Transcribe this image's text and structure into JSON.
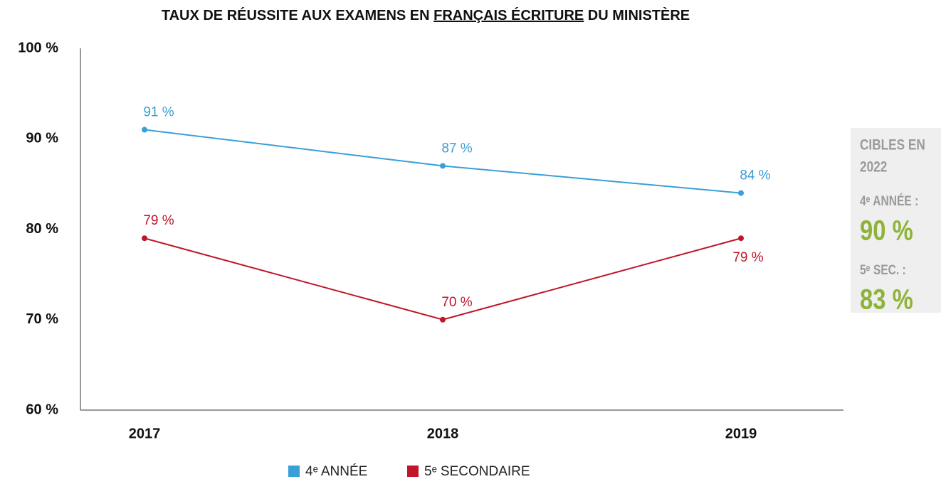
{
  "chart_data": {
    "type": "line",
    "title": [
      "TAUX DE RÉUSSITE AUX EXAMENS EN ",
      "FRANÇAIS ÉCRITURE",
      " DU MINISTÈRE"
    ],
    "categories": [
      "2017",
      "2018",
      "2019"
    ],
    "series": [
      {
        "name": "4ᵉ ANNÉE",
        "color": "#3a9fd6",
        "values": [
          91,
          87,
          84
        ],
        "value_labels": [
          "91 %",
          "87 %",
          "84 %"
        ]
      },
      {
        "name": "5ᵉ SECONDAIRE",
        "color": "#c0152a",
        "values": [
          79,
          70,
          79
        ],
        "value_labels": [
          "79 %",
          "70 %",
          "79 %"
        ]
      }
    ],
    "ylim": [
      60,
      100
    ],
    "yticks": [
      {
        "value": 60,
        "label": "60 %"
      },
      {
        "value": 70,
        "label": "70 %"
      },
      {
        "value": 80,
        "label": "80 %"
      },
      {
        "value": 90,
        "label": "90 %"
      },
      {
        "value": 100,
        "label": "100 %"
      }
    ],
    "grid": false,
    "targets": {
      "title": [
        "CIBLES EN",
        "2022"
      ],
      "items": [
        {
          "label": "4ᵉ ANNÉE :",
          "value": "90 %"
        },
        {
          "label": "5ᵉ SEC. :",
          "value": "83 %"
        }
      ]
    }
  }
}
